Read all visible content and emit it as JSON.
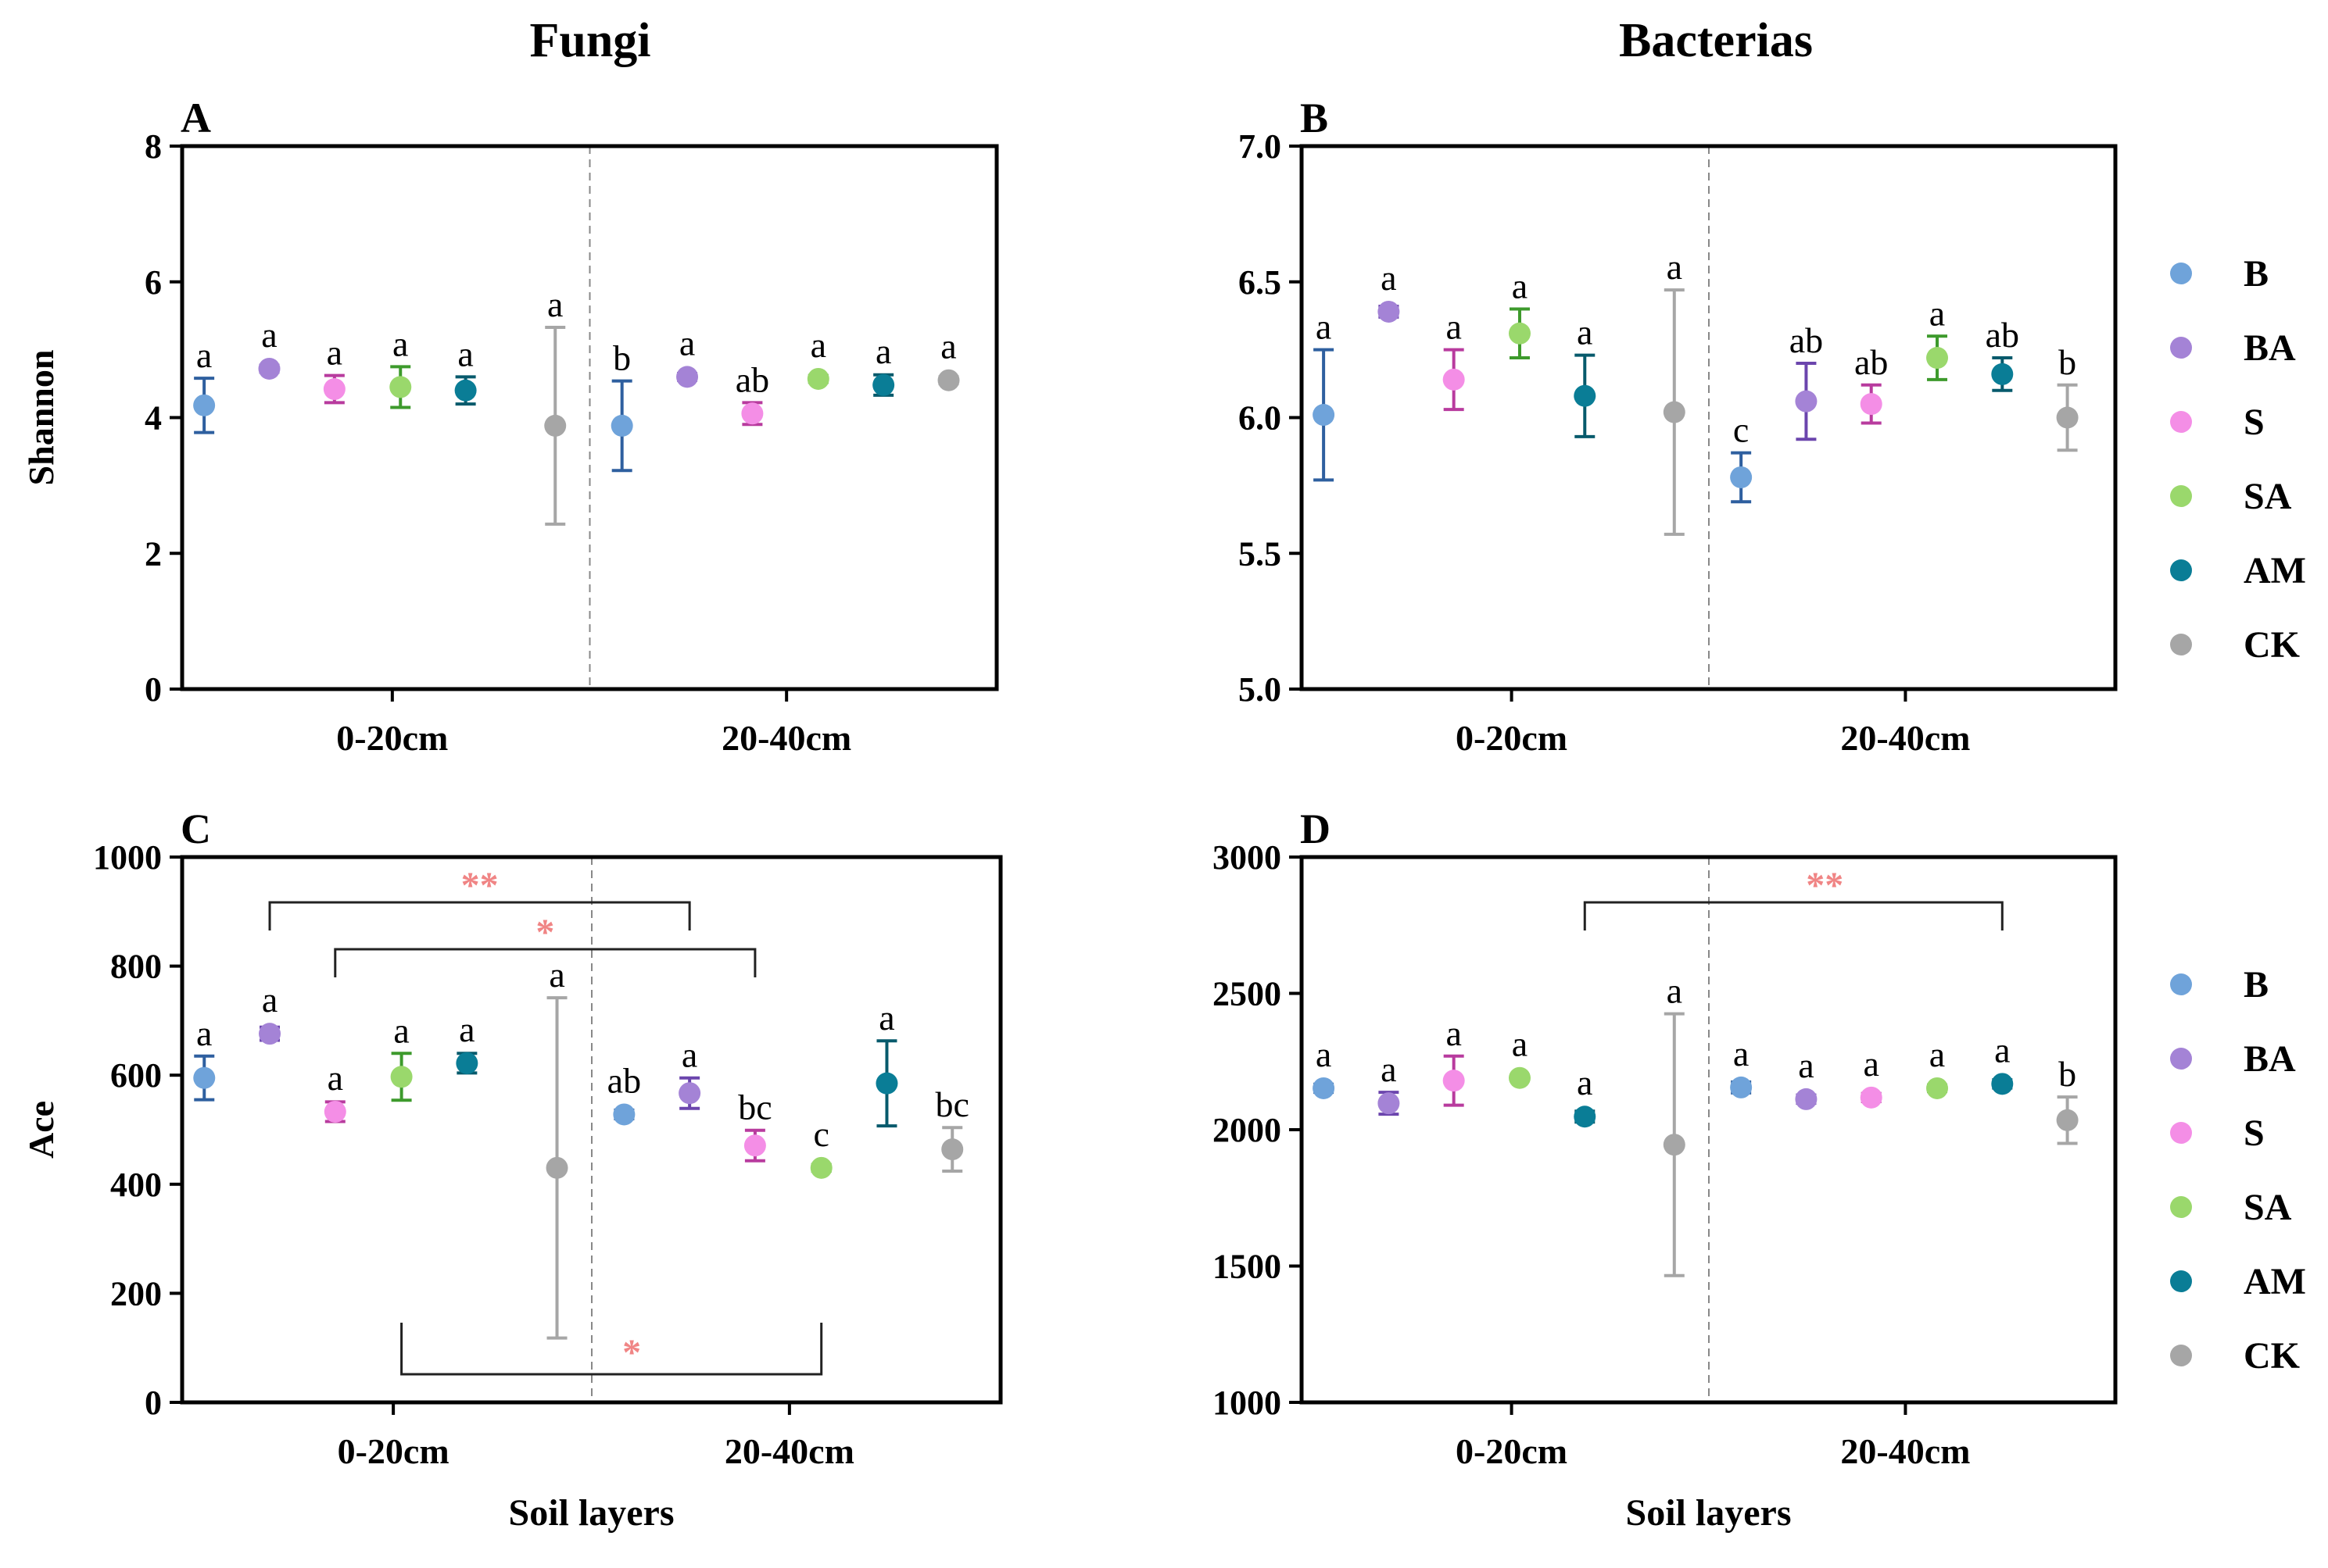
{
  "colors": {
    "B": {
      "fill": "#6fa3da",
      "stroke": "#2e5f9f"
    },
    "BA": {
      "fill": "#a483d6",
      "stroke": "#6b45ad"
    },
    "S": {
      "fill": "#f48ee6",
      "stroke": "#b83b9e"
    },
    "SA": {
      "fill": "#9ad86c",
      "stroke": "#3d9a2c"
    },
    "AM": {
      "fill": "#0a7d96",
      "stroke": "#075a6c"
    },
    "CK": {
      "fill": "#a6a6a6",
      "stroke": "#a6a6a6"
    },
    "sig": "#f08585",
    "axis": "#000000"
  },
  "column_titles": [
    "Fungi",
    "Bacterias"
  ],
  "legend": {
    "items": [
      {
        "key": "B",
        "label": "B"
      },
      {
        "key": "BA",
        "label": "BA"
      },
      {
        "key": "S",
        "label": "S"
      },
      {
        "key": "SA",
        "label": "SA"
      },
      {
        "key": "AM",
        "label": "AM"
      },
      {
        "key": "CK",
        "label": "CK"
      }
    ]
  },
  "chart_data": [
    {
      "panel": "A",
      "type": "scatter",
      "title": "Fungi",
      "ylabel": "Shannon",
      "xlabel": "",
      "ylim": [
        0,
        8
      ],
      "yticks": [
        0,
        2,
        4,
        6,
        8
      ],
      "categories": [
        "0-20cm",
        "20-40cm"
      ],
      "series": [
        {
          "name": "B",
          "values": [
            4.18,
            3.88
          ],
          "errors": [
            0.4,
            0.66
          ],
          "letters": [
            "a",
            "b"
          ]
        },
        {
          "name": "BA",
          "values": [
            4.72,
            4.6
          ],
          "errors": [
            0.05,
            0.05
          ],
          "letters": [
            "a",
            "a"
          ]
        },
        {
          "name": "S",
          "values": [
            4.42,
            4.06
          ],
          "errors": [
            0.2,
            0.16
          ],
          "letters": [
            "a",
            "ab"
          ]
        },
        {
          "name": "SA",
          "values": [
            4.45,
            4.57
          ],
          "errors": [
            0.3,
            0.05
          ],
          "letters": [
            "a",
            "a"
          ]
        },
        {
          "name": "AM",
          "values": [
            4.4,
            4.48
          ],
          "errors": [
            0.2,
            0.15
          ],
          "letters": [
            "a",
            "a"
          ]
        },
        {
          "name": "CK",
          "values": [
            3.88,
            4.55
          ],
          "errors": [
            1.45,
            0.05
          ],
          "letters": [
            "a",
            "a"
          ]
        }
      ],
      "brackets": []
    },
    {
      "panel": "B",
      "type": "scatter",
      "title": "Bacterias",
      "ylabel": "",
      "xlabel": "",
      "ylim": [
        5.0,
        7.0
      ],
      "yticks": [
        "5.0",
        "5.5",
        "6.0",
        "6.5",
        "7.0"
      ],
      "categories": [
        "0-20cm",
        "20-40cm"
      ],
      "series": [
        {
          "name": "B",
          "values": [
            6.01,
            5.78
          ],
          "errors": [
            0.24,
            0.09
          ],
          "letters": [
            "a",
            "c"
          ]
        },
        {
          "name": "BA",
          "values": [
            6.39,
            6.06
          ],
          "errors": [
            0.02,
            0.14
          ],
          "letters": [
            "a",
            "ab"
          ]
        },
        {
          "name": "S",
          "values": [
            6.14,
            6.05
          ],
          "errors": [
            0.11,
            0.07
          ],
          "letters": [
            "a",
            "ab"
          ]
        },
        {
          "name": "SA",
          "values": [
            6.31,
            6.22
          ],
          "errors": [
            0.09,
            0.08
          ],
          "letters": [
            "a",
            "a"
          ]
        },
        {
          "name": "AM",
          "values": [
            6.08,
            6.16
          ],
          "errors": [
            0.15,
            0.06
          ],
          "letters": [
            "a",
            "ab"
          ]
        },
        {
          "name": "CK",
          "values": [
            6.02,
            6.0
          ],
          "errors": [
            0.45,
            0.12
          ],
          "letters": [
            "a",
            "b"
          ]
        }
      ],
      "brackets": []
    },
    {
      "panel": "C",
      "type": "scatter",
      "title": "",
      "ylabel": "Ace",
      "xlabel": "Soil layers",
      "ylim": [
        0,
        1000
      ],
      "yticks": [
        0,
        200,
        400,
        600,
        800,
        1000
      ],
      "categories": [
        "0-20cm",
        "20-40cm"
      ],
      "series": [
        {
          "name": "B",
          "values": [
            595,
            528
          ],
          "errors": [
            40,
            8
          ],
          "letters": [
            "a",
            "ab"
          ]
        },
        {
          "name": "BA",
          "values": [
            676,
            567
          ],
          "errors": [
            12,
            28
          ],
          "letters": [
            "a",
            "a"
          ]
        },
        {
          "name": "S",
          "values": [
            533,
            471
          ],
          "errors": [
            18,
            28
          ],
          "letters": [
            "a",
            "bc"
          ]
        },
        {
          "name": "SA",
          "values": [
            597,
            430
          ],
          "errors": [
            43,
            6
          ],
          "letters": [
            "a",
            "c"
          ]
        },
        {
          "name": "AM",
          "values": [
            622,
            585
          ],
          "errors": [
            18,
            78
          ],
          "letters": [
            "a",
            "a"
          ]
        },
        {
          "name": "CK",
          "values": [
            430,
            464
          ],
          "errors": [
            312,
            40
          ],
          "letters": [
            "a",
            "bc"
          ]
        }
      ],
      "brackets": [
        {
          "from": [
            "BA",
            "0-20cm"
          ],
          "to": [
            "BA",
            "20-40cm"
          ],
          "label": "**",
          "side": "top"
        },
        {
          "from": [
            "S",
            "0-20cm"
          ],
          "to": [
            "S",
            "20-40cm"
          ],
          "label": "*",
          "side": "top"
        },
        {
          "from": [
            "SA",
            "0-20cm"
          ],
          "to": [
            "SA",
            "20-40cm"
          ],
          "label": "*",
          "side": "bottom"
        }
      ]
    },
    {
      "panel": "D",
      "type": "scatter",
      "title": "",
      "ylabel": "",
      "xlabel": "Soil layers",
      "ylim": [
        1000,
        3000
      ],
      "yticks": [
        1000,
        1500,
        2000,
        2500,
        3000
      ],
      "categories": [
        "0-20cm",
        "20-40cm"
      ],
      "series": [
        {
          "name": "B",
          "values": [
            2152,
            2155
          ],
          "errors": [
            15,
            20
          ],
          "letters": [
            "a",
            "a"
          ]
        },
        {
          "name": "BA",
          "values": [
            2097,
            2112
          ],
          "errors": [
            40,
            15
          ],
          "letters": [
            "a",
            "a"
          ]
        },
        {
          "name": "S",
          "values": [
            2180,
            2118
          ],
          "errors": [
            90,
            15
          ],
          "letters": [
            "a",
            "a"
          ]
        },
        {
          "name": "SA",
          "values": [
            2190,
            2152
          ],
          "errors": [
            10,
            12
          ],
          "letters": [
            "a",
            "a"
          ]
        },
        {
          "name": "AM",
          "values": [
            2048,
            2168
          ],
          "errors": [
            20,
            15
          ],
          "letters": [
            "a",
            "a"
          ]
        },
        {
          "name": "CK",
          "values": [
            1945,
            2035
          ],
          "errors": [
            480,
            85
          ],
          "letters": [
            "a",
            "b"
          ]
        }
      ],
      "brackets": [
        {
          "from": [
            "AM",
            "0-20cm"
          ],
          "to": [
            "AM",
            "20-40cm"
          ],
          "label": "**",
          "side": "top"
        }
      ]
    }
  ]
}
